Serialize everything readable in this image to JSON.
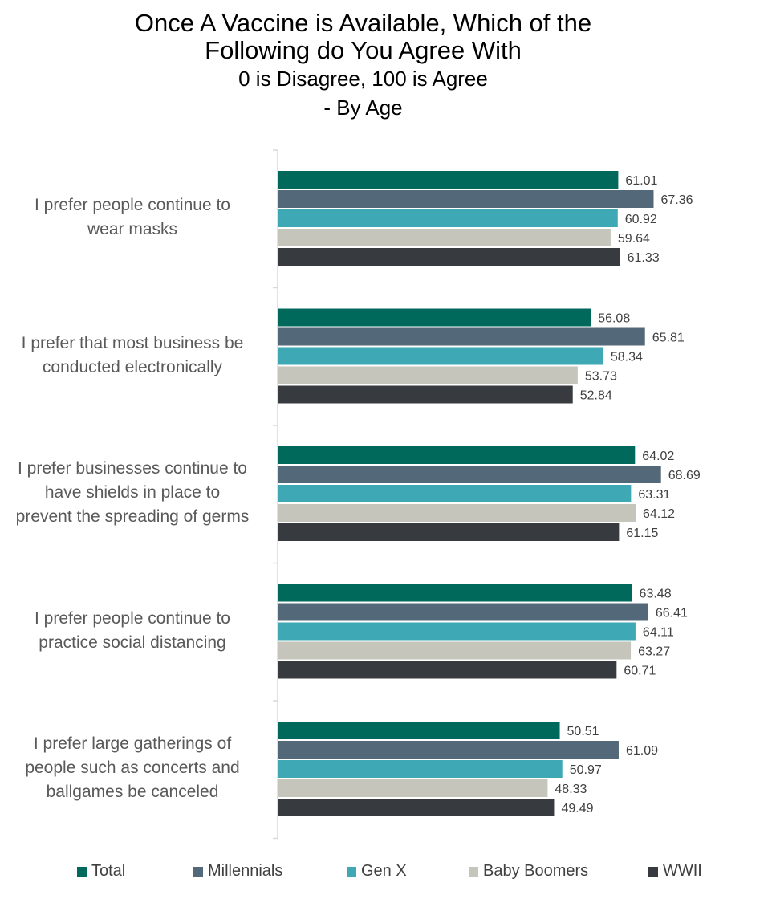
{
  "chart_data": {
    "type": "bar",
    "orientation": "horizontal",
    "title": "Once A Vaccine is Available, Which of the Following do You Agree With",
    "title_lines": [
      "Once A Vaccine is Available, Which of the",
      "Following do You Agree With"
    ],
    "subtitle_lines": [
      "0 is Disagree, 100 is Agree",
      "- By Age"
    ],
    "categories": [
      "I prefer people continue to wear masks",
      "I prefer that most business be conducted electronically",
      "I prefer businesses continue to have shields in place to prevent the spreading of germs",
      "I prefer people continue to practice social distancing",
      "I prefer large gatherings of people such as concerts and ballgames be canceled"
    ],
    "category_label_lines": [
      [
        "I prefer people continue to",
        "wear masks"
      ],
      [
        "I prefer that most business be",
        "conducted electronically"
      ],
      [
        "I prefer businesses continue to",
        "have shields in place to",
        "prevent the spreading of germs"
      ],
      [
        "I prefer people continue to",
        "practice social distancing"
      ],
      [
        "I prefer large gatherings of",
        "people such as concerts and",
        "ballgames be canceled"
      ]
    ],
    "series": [
      {
        "name": "Total",
        "color": "#00695C",
        "values": [
          61.01,
          56.08,
          64.02,
          63.48,
          50.51
        ]
      },
      {
        "name": "Millennials",
        "color": "#536878",
        "values": [
          67.36,
          65.81,
          68.69,
          66.41,
          61.09
        ]
      },
      {
        "name": "Gen X",
        "color": "#3EA9B5",
        "values": [
          60.92,
          58.34,
          63.31,
          64.11,
          50.97
        ]
      },
      {
        "name": "Baby Boomers",
        "color": "#C5C5BB",
        "values": [
          59.64,
          53.73,
          64.12,
          63.27,
          48.33
        ]
      },
      {
        "name": "WWII",
        "color": "#373B3F",
        "values": [
          61.33,
          52.84,
          61.15,
          60.71,
          49.49
        ]
      }
    ],
    "xlim": [
      0,
      100
    ],
    "grid": false,
    "legend_position": "bottom",
    "data_labels": true
  }
}
